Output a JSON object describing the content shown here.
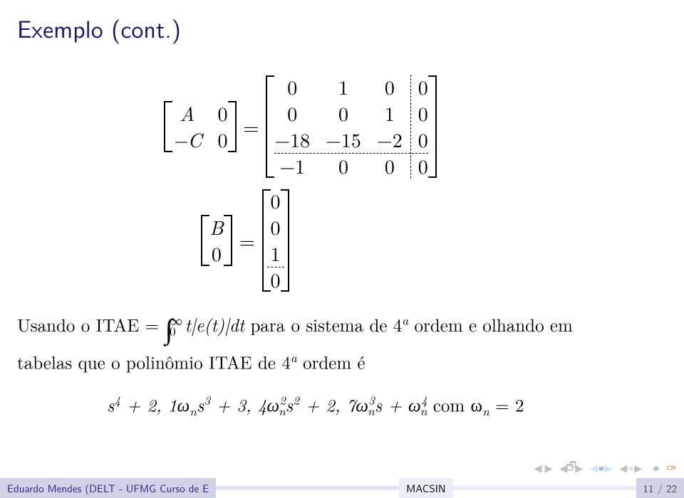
{
  "title": "Exemplo (cont.)",
  "eq1": {
    "left_matrix": {
      "rows": 2,
      "cols": 2,
      "cells": [
        "A",
        "0",
        "−C",
        "0"
      ]
    },
    "right_matrix": {
      "rows": 4,
      "cols": 4,
      "cells": [
        "0",
        "1",
        "0",
        "0",
        "0",
        "0",
        "1",
        "0",
        "−18",
        "−15",
        "−2",
        "0",
        "−1",
        "0",
        "0",
        "0"
      ]
    },
    "dash_col": 3,
    "dash_row": 3
  },
  "eq2": {
    "left_matrix": {
      "rows": 2,
      "cols": 1,
      "cells": [
        "B",
        "0"
      ]
    },
    "right_matrix": {
      "rows": 4,
      "cols": 1,
      "cells": [
        "0",
        "0",
        "1",
        "0"
      ]
    },
    "dash_row": 3
  },
  "body_text": {
    "line1a": "Usando o ITAE = ",
    "int_low": "0",
    "int_up": "∞",
    "int_body": " t|e(t)|dt",
    "line1b": " para o sistema de 4",
    "supA": "a",
    "line1c": " ordem e olhando em",
    "line2a": "tabelas que o polinômio ITAE de 4",
    "line2b": " ordem é"
  },
  "poly": {
    "t1": "s",
    "e1": "4",
    "plus1": " + 2, 1ω",
    "sub_n1": "n",
    "t2": "s",
    "e2": "3",
    "plus2": " + 3, 4ω",
    "sub_n2": "n",
    "e2b": "2",
    "t3": "s",
    "e3": "2",
    "plus3": " + 2, 7ω",
    "sub_n3": "n",
    "e3b": "3",
    "t4": "s",
    "plus4": " + ω",
    "sub_n4": "n",
    "e4": "4",
    "tail": " com ω",
    "sub_n5": "n",
    "tail2": " = 2"
  },
  "footer": {
    "left": "Eduardo Mendes (DELT - UFMG Curso de E",
    "center": "MACSIN",
    "right": "11 / 22"
  },
  "colors": {
    "title": "#191970",
    "footer_left_bg": "#d0d3e8",
    "footer_left_fg": "#2a2a80",
    "footer_mid1_bg": "#e2e4f1",
    "footer_mid2_bg": "#eceef7",
    "footer_center_fg": "#000000",
    "footer_right_bg": "#d0d3e8",
    "footer_right_fg": "#4a4a4a",
    "nav_outer": "#bfbfbf",
    "nav_inner1": "#cfe3f5",
    "nav_inner2": "#2e5fa3",
    "nav_swirl": "#cc9a66"
  }
}
